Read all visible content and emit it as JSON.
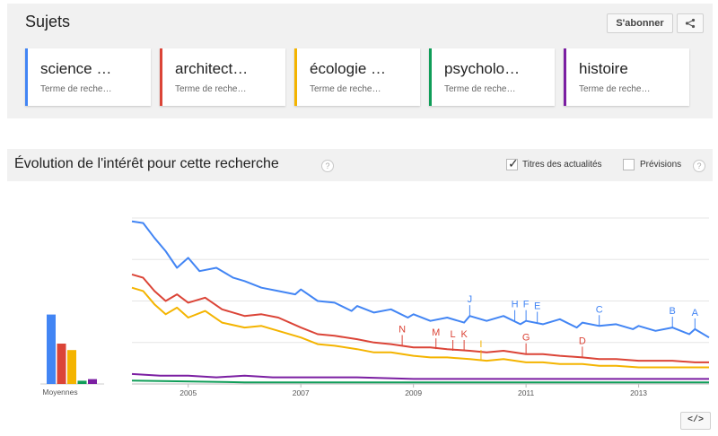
{
  "topics": {
    "title": "Sujets",
    "subscribe_label": "S'abonner",
    "share_icon": "share-icon",
    "terms": [
      {
        "name": "science …",
        "sub": "Terme de reche…",
        "color": "#4285f4"
      },
      {
        "name": "architect…",
        "sub": "Terme de reche…",
        "color": "#db4437"
      },
      {
        "name": "écologie …",
        "sub": "Terme de reche…",
        "color": "#f4b400"
      },
      {
        "name": "psycholo…",
        "sub": "Terme de reche…",
        "color": "#0f9d58"
      },
      {
        "name": "histoire",
        "sub": "Terme de reche…",
        "color": "#7b1fa2"
      }
    ]
  },
  "evolution": {
    "title": "Évolution de l'intérêt pour cette recherche",
    "news_headlines_label": "Titres des actualités",
    "news_headlines_checked": true,
    "forecast_label": "Prévisions",
    "forecast_checked": false
  },
  "embed_label": "</>",
  "chart_data": [
    {
      "type": "bar",
      "xlabel": "Moyennes",
      "categories": [
        "science …",
        "architect…",
        "écologie …",
        "psycholo…",
        "histoire"
      ],
      "values": [
        43,
        25,
        21,
        2,
        3
      ],
      "colors": [
        "#4285f4",
        "#db4437",
        "#f4b400",
        "#0f9d58",
        "#7b1fa2"
      ],
      "ylim": [
        0,
        100
      ]
    },
    {
      "type": "line",
      "x_ticks": [
        "2005",
        "2007",
        "2009",
        "2011",
        "2013"
      ],
      "x_start": 2004.0,
      "x_end": 2014.25,
      "ylim": [
        0,
        100
      ],
      "grid": true,
      "series": [
        {
          "name": "science …",
          "color": "#4285f4",
          "points": [
            [
              2004.0,
              98
            ],
            [
              2004.2,
              97
            ],
            [
              2004.4,
              88
            ],
            [
              2004.6,
              80
            ],
            [
              2004.8,
              70
            ],
            [
              2005.0,
              76
            ],
            [
              2005.2,
              68
            ],
            [
              2005.5,
              70
            ],
            [
              2005.8,
              64
            ],
            [
              2006.0,
              62
            ],
            [
              2006.3,
              58
            ],
            [
              2006.6,
              56
            ],
            [
              2006.9,
              54
            ],
            [
              2007.0,
              57
            ],
            [
              2007.3,
              50
            ],
            [
              2007.6,
              49
            ],
            [
              2007.9,
              44
            ],
            [
              2008.0,
              47
            ],
            [
              2008.3,
              43
            ],
            [
              2008.6,
              45
            ],
            [
              2008.9,
              40
            ],
            [
              2009.0,
              42
            ],
            [
              2009.3,
              38
            ],
            [
              2009.6,
              40
            ],
            [
              2009.9,
              37
            ],
            [
              2010.0,
              41
            ],
            [
              2010.3,
              38
            ],
            [
              2010.6,
              41
            ],
            [
              2010.9,
              36
            ],
            [
              2011.0,
              38
            ],
            [
              2011.3,
              36
            ],
            [
              2011.6,
              39
            ],
            [
              2011.9,
              34
            ],
            [
              2012.0,
              37
            ],
            [
              2012.3,
              35
            ],
            [
              2012.6,
              36
            ],
            [
              2012.9,
              33
            ],
            [
              2013.0,
              35
            ],
            [
              2013.3,
              32
            ],
            [
              2013.6,
              34
            ],
            [
              2013.9,
              30
            ],
            [
              2014.0,
              33
            ],
            [
              2014.25,
              28
            ]
          ]
        },
        {
          "name": "architect…",
          "color": "#db4437",
          "points": [
            [
              2004.0,
              66
            ],
            [
              2004.2,
              64
            ],
            [
              2004.4,
              56
            ],
            [
              2004.6,
              50
            ],
            [
              2004.8,
              54
            ],
            [
              2005.0,
              49
            ],
            [
              2005.3,
              52
            ],
            [
              2005.6,
              45
            ],
            [
              2006.0,
              41
            ],
            [
              2006.3,
              42
            ],
            [
              2006.6,
              40
            ],
            [
              2007.0,
              34
            ],
            [
              2007.3,
              30
            ],
            [
              2007.6,
              29
            ],
            [
              2008.0,
              27
            ],
            [
              2008.3,
              25
            ],
            [
              2008.6,
              24
            ],
            [
              2009.0,
              22
            ],
            [
              2009.3,
              22
            ],
            [
              2009.6,
              21
            ],
            [
              2010.0,
              20
            ],
            [
              2010.3,
              19
            ],
            [
              2010.6,
              20
            ],
            [
              2011.0,
              18
            ],
            [
              2011.3,
              18
            ],
            [
              2011.6,
              17
            ],
            [
              2012.0,
              16
            ],
            [
              2012.3,
              15
            ],
            [
              2012.6,
              15
            ],
            [
              2013.0,
              14
            ],
            [
              2013.3,
              14
            ],
            [
              2013.6,
              14
            ],
            [
              2014.0,
              13
            ],
            [
              2014.25,
              13
            ]
          ]
        },
        {
          "name": "écologie …",
          "color": "#f4b400",
          "points": [
            [
              2004.0,
              58
            ],
            [
              2004.2,
              56
            ],
            [
              2004.4,
              48
            ],
            [
              2004.6,
              42
            ],
            [
              2004.8,
              46
            ],
            [
              2005.0,
              40
            ],
            [
              2005.3,
              44
            ],
            [
              2005.6,
              37
            ],
            [
              2006.0,
              34
            ],
            [
              2006.3,
              35
            ],
            [
              2006.6,
              32
            ],
            [
              2007.0,
              28
            ],
            [
              2007.3,
              24
            ],
            [
              2007.6,
              23
            ],
            [
              2008.0,
              21
            ],
            [
              2008.3,
              19
            ],
            [
              2008.6,
              19
            ],
            [
              2009.0,
              17
            ],
            [
              2009.3,
              16
            ],
            [
              2009.6,
              16
            ],
            [
              2010.0,
              15
            ],
            [
              2010.3,
              14
            ],
            [
              2010.6,
              15
            ],
            [
              2011.0,
              13
            ],
            [
              2011.3,
              13
            ],
            [
              2011.6,
              12
            ],
            [
              2012.0,
              12
            ],
            [
              2012.3,
              11
            ],
            [
              2012.6,
              11
            ],
            [
              2013.0,
              10
            ],
            [
              2013.3,
              10
            ],
            [
              2013.6,
              10
            ],
            [
              2014.0,
              10
            ],
            [
              2014.25,
              10
            ]
          ]
        },
        {
          "name": "psycholo…",
          "color": "#0f9d58",
          "points": [
            [
              2004.0,
              2
            ],
            [
              2006.0,
              1
            ],
            [
              2008.0,
              1
            ],
            [
              2010.0,
              1
            ],
            [
              2012.0,
              1
            ],
            [
              2014.25,
              1
            ]
          ]
        },
        {
          "name": "histoire",
          "color": "#7b1fa2",
          "points": [
            [
              2004.0,
              6
            ],
            [
              2004.5,
              5
            ],
            [
              2005.0,
              5
            ],
            [
              2005.5,
              4
            ],
            [
              2006.0,
              5
            ],
            [
              2006.5,
              4
            ],
            [
              2007.0,
              4
            ],
            [
              2008.0,
              4
            ],
            [
              2009.0,
              3
            ],
            [
              2010.0,
              3
            ],
            [
              2011.0,
              3
            ],
            [
              2012.0,
              3
            ],
            [
              2013.0,
              3
            ],
            [
              2014.25,
              3
            ]
          ]
        }
      ],
      "annotations": [
        {
          "label": "A",
          "x": 2014.0,
          "y": 33,
          "color": "#4285f4"
        },
        {
          "label": "B",
          "x": 2013.6,
          "y": 34,
          "color": "#4285f4"
        },
        {
          "label": "C",
          "x": 2012.3,
          "y": 35,
          "color": "#4285f4"
        },
        {
          "label": "D",
          "x": 2012.0,
          "y": 16,
          "color": "#db4437"
        },
        {
          "label": "E",
          "x": 2011.2,
          "y": 37,
          "color": "#4285f4"
        },
        {
          "label": "F",
          "x": 2011.0,
          "y": 38,
          "color": "#4285f4"
        },
        {
          "label": "G",
          "x": 2011.0,
          "y": 18,
          "color": "#db4437"
        },
        {
          "label": "H",
          "x": 2010.8,
          "y": 38,
          "color": "#4285f4"
        },
        {
          "label": "I",
          "x": 2010.2,
          "y": 14,
          "color": "#f4b400"
        },
        {
          "label": "J",
          "x": 2010.0,
          "y": 41,
          "color": "#4285f4"
        },
        {
          "label": "K",
          "x": 2009.9,
          "y": 20,
          "color": "#db4437"
        },
        {
          "label": "L",
          "x": 2009.7,
          "y": 20,
          "color": "#db4437"
        },
        {
          "label": "M",
          "x": 2009.4,
          "y": 21,
          "color": "#db4437"
        },
        {
          "label": "N",
          "x": 2008.8,
          "y": 23,
          "color": "#db4437"
        }
      ]
    }
  ]
}
